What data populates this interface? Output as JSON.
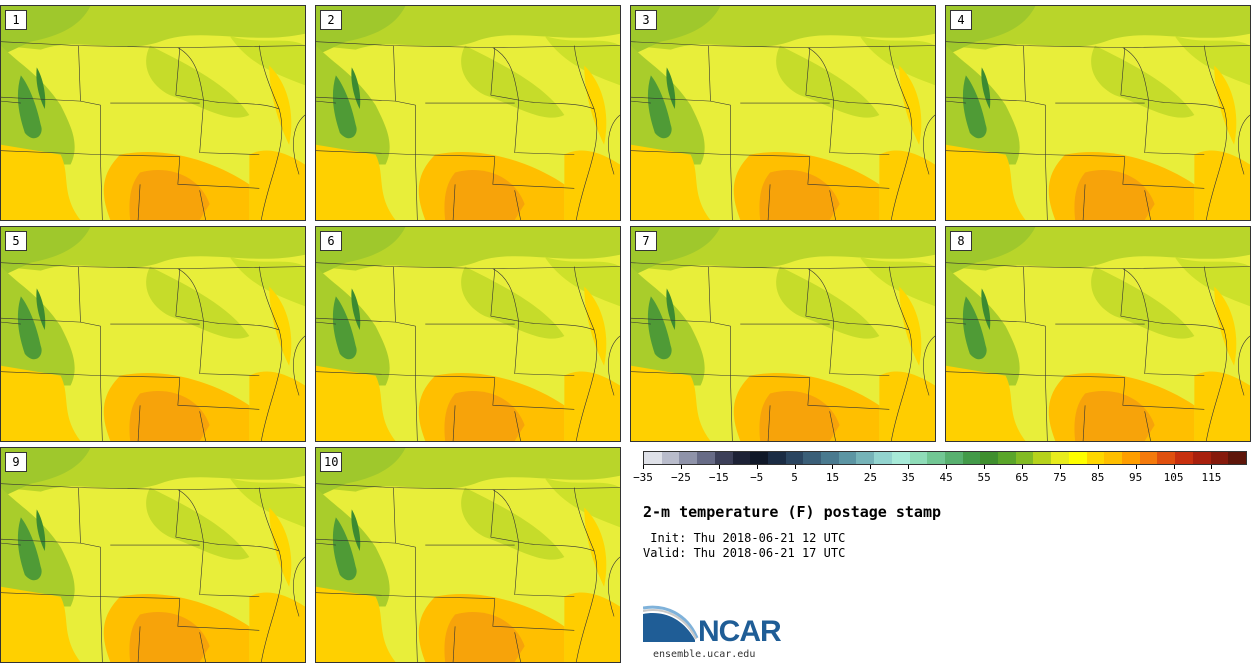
{
  "product": {
    "title": "2-m temperature (F) postage stamp",
    "init_text": " Init: Thu 2018-06-21 12 UTC",
    "valid_text": "Valid: Thu 2018-06-21 17 UTC"
  },
  "members": [
    {
      "label": "1"
    },
    {
      "label": "2"
    },
    {
      "label": "3"
    },
    {
      "label": "4"
    },
    {
      "label": "5"
    },
    {
      "label": "6"
    },
    {
      "label": "7"
    },
    {
      "label": "8"
    },
    {
      "label": "9"
    },
    {
      "label": "10"
    }
  ],
  "colorbar": {
    "units": "F",
    "tick_labels": [
      "−35",
      "−25",
      "−15",
      "−5",
      "5",
      "15",
      "25",
      "35",
      "45",
      "55",
      "65",
      "75",
      "85",
      "95",
      "105",
      "115"
    ],
    "colors": [
      "#dfe1e8",
      "#b9bccb",
      "#8f93a9",
      "#676b86",
      "#3c3f58",
      "#1d2236",
      "#101828",
      "#1b2c44",
      "#2b4560",
      "#3b5f78",
      "#4a7a8f",
      "#5c95a3",
      "#76b3b8",
      "#93d4cf",
      "#a7ead8",
      "#8fdcb8",
      "#72c794",
      "#58b06f",
      "#439a49",
      "#3f8f2e",
      "#5aa52a",
      "#82bb24",
      "#b6d21c",
      "#e8ec1d",
      "#ffff00",
      "#ffd700",
      "#ffbf00",
      "#ff9e00",
      "#f47a0c",
      "#e0500e",
      "#c8300e",
      "#a8200d",
      "#861a0c",
      "#5e160a"
    ]
  },
  "branding": {
    "logo_text": "NCAR",
    "url": "ensemble.ucar.edu"
  }
}
